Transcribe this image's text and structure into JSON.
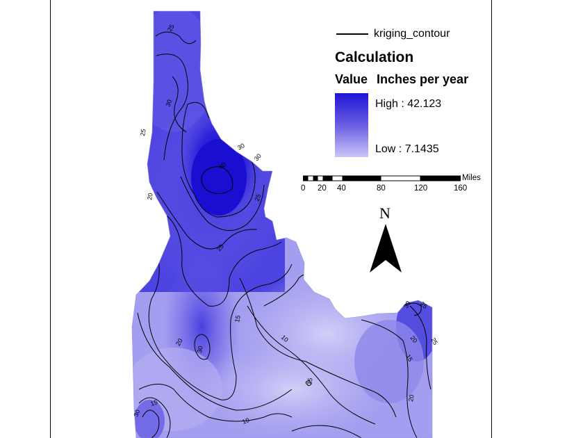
{
  "legend": {
    "line_label": "kriging_contour",
    "title": "Calculation",
    "field": "Value",
    "units": "Inches per year",
    "high_label": "High : 42.123",
    "low_label": "Low : 7.1435",
    "colors": {
      "high": "#1f14d6",
      "mid": "#6a5de3",
      "low": "#c9c6f7"
    }
  },
  "scale_bar": {
    "unit": "Miles",
    "ticks": [
      "0",
      "20",
      "40",
      "80",
      "120",
      "160"
    ]
  },
  "north_arrow": {
    "label": "N"
  },
  "contour_labels": [
    "25",
    "30",
    "25",
    "30",
    "40",
    "30",
    "25",
    "20",
    "25",
    "15",
    "10",
    "20",
    "30",
    "15",
    "10",
    "15",
    "20",
    "15",
    "20",
    "25",
    "30",
    "25",
    "30"
  ]
}
